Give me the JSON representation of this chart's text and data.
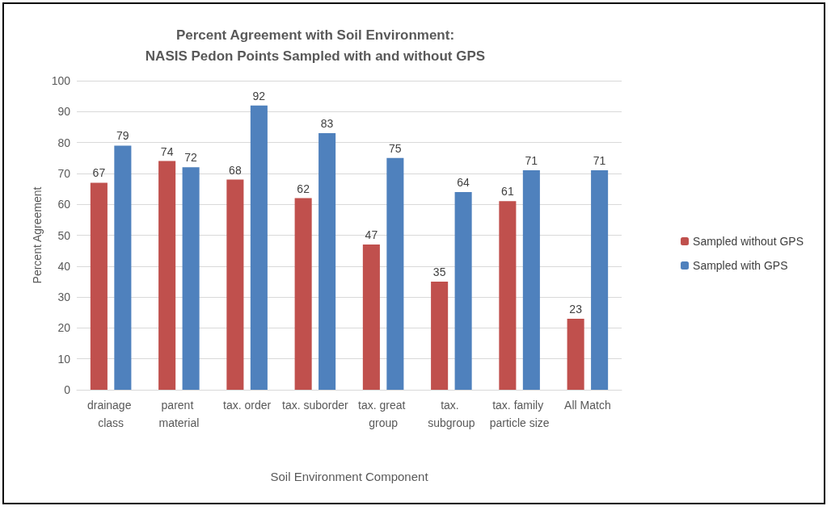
{
  "chart_data": {
    "type": "bar",
    "title": "Percent Agreement with Soil Environment:\nNASIS Pedon Points Sampled with and without GPS",
    "xlabel": "Soil Environment Component",
    "ylabel": "Percent Agreement",
    "categories": [
      "drainage class",
      "parent material",
      "tax. order",
      "tax. suborder",
      "tax. great group",
      "tax. subgroup",
      "tax. family particle size",
      "All Match"
    ],
    "series": [
      {
        "name": "Sampled without GPS",
        "color": "#c0504d",
        "values": [
          67,
          74,
          68,
          62,
          47,
          35,
          61,
          23
        ]
      },
      {
        "name": "Sampled with GPS",
        "color": "#4f81bd",
        "values": [
          79,
          72,
          92,
          83,
          75,
          64,
          71,
          71
        ]
      }
    ],
    "ylim": [
      0,
      100
    ],
    "yticks": [
      0,
      10,
      20,
      30,
      40,
      50,
      60,
      70,
      80,
      90,
      100
    ],
    "grid": "y",
    "legend": "right",
    "data_labels": true
  }
}
